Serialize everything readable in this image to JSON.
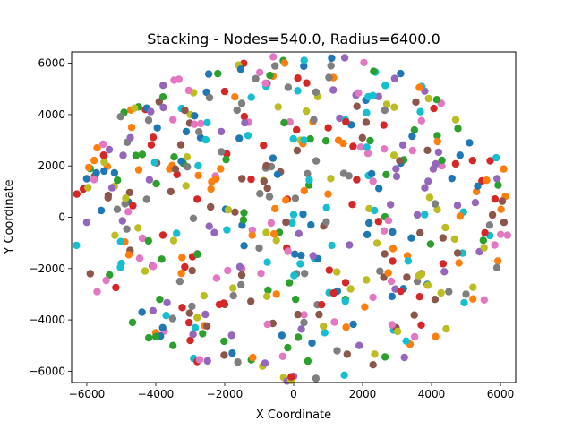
{
  "chart_data": {
    "type": "scatter",
    "title": "Stacking - Nodes=540.0, Radius=6400.0",
    "xlabel": "X Coordinate",
    "ylabel": "Y Coordinate",
    "xlim": [
      -6440,
      6440
    ],
    "ylim": [
      -6440,
      6440
    ],
    "xticks": [
      -6000,
      -4000,
      -2000,
      0,
      2000,
      4000,
      6000
    ],
    "yticks": [
      -6000,
      -4000,
      -2000,
      0,
      2000,
      4000,
      6000
    ],
    "xtick_labels": [
      "−6000",
      "−4000",
      "−2000",
      "0",
      "2000",
      "4000",
      "6000"
    ],
    "ytick_labels": [
      "−6000",
      "−4000",
      "−2000",
      "0",
      "2000",
      "4000",
      "6000"
    ],
    "grid": false,
    "legend": "none",
    "palette": [
      "#1f77b4",
      "#ff7f0e",
      "#2ca02c",
      "#d62728",
      "#9467bd",
      "#8c564b",
      "#e377c2",
      "#7f7f7f",
      "#bcbd22",
      "#17becf"
    ],
    "node_count": 540,
    "radius": 6400,
    "points_sample": [
      [
        -6000,
        1500
      ],
      [
        -5700,
        2700
      ],
      [
        -5900,
        1900
      ],
      [
        -6100,
        1100
      ],
      [
        -6000,
        -200
      ],
      [
        -5900,
        -2200
      ],
      [
        -5700,
        -2900
      ],
      [
        -5500,
        2400
      ],
      [
        -5200,
        1200
      ],
      [
        -5000,
        -1800
      ],
      [
        -4800,
        600
      ],
      [
        -4700,
        3500
      ],
      [
        -4500,
        4300
      ],
      [
        -4300,
        4200
      ],
      [
        -4100,
        -1900
      ],
      [
        -3900,
        4500
      ],
      [
        -3500,
        3800
      ],
      [
        -3300,
        -2500
      ],
      [
        -3000,
        4000
      ],
      [
        -2900,
        -5500
      ],
      [
        -2700,
        3100
      ],
      [
        -2400,
        1100
      ],
      [
        -2200,
        5600
      ],
      [
        -2000,
        4900
      ],
      [
        -1800,
        -4600
      ],
      [
        -1500,
        1500
      ],
      [
        -1300,
        3700
      ],
      [
        -1100,
        5400
      ],
      [
        -900,
        -5800
      ],
      [
        -800,
        5100
      ],
      [
        -600,
        2300
      ],
      [
        -500,
        -3000
      ],
      [
        -300,
        6100
      ],
      [
        -200,
        -1200
      ],
      [
        0,
        -6200
      ],
      [
        100,
        2600
      ],
      [
        300,
        -3800
      ],
      [
        400,
        1700
      ],
      [
        700,
        4700
      ],
      [
        900,
        -4500
      ],
      [
        1100,
        6200
      ],
      [
        1300,
        3000
      ],
      [
        1500,
        -3200
      ],
      [
        1700,
        500
      ],
      [
        1900,
        -5000
      ],
      [
        2100,
        3700
      ],
      [
        2300,
        1400
      ],
      [
        2500,
        -2100
      ],
      [
        2700,
        4400
      ],
      [
        2900,
        -4400
      ],
      [
        3100,
        5600
      ],
      [
        3300,
        -1500
      ],
      [
        3500,
        3400
      ],
      [
        3700,
        -4200
      ],
      [
        3900,
        1400
      ],
      [
        4100,
        -3200
      ],
      [
        4300,
        2000
      ],
      [
        4500,
        -2900
      ],
      [
        4700,
        3800
      ],
      [
        4900,
        -1400
      ],
      [
        5100,
        2900
      ],
      [
        5300,
        1000
      ],
      [
        5500,
        -900
      ],
      [
        5700,
        2200
      ],
      [
        5900,
        1500
      ],
      [
        6100,
        -200
      ],
      [
        6200,
        -700
      ],
      [
        5000,
        -3000
      ],
      [
        4400,
        -400
      ],
      [
        3800,
        100
      ],
      [
        -4400,
        -3700
      ],
      [
        -4000,
        -4500
      ],
      [
        -3500,
        -5000
      ],
      [
        -3000,
        -4800
      ],
      [
        -2500,
        -5600
      ],
      [
        -2000,
        -3400
      ],
      [
        -1500,
        -2000
      ],
      [
        -1000,
        -1200
      ],
      [
        -500,
        -900
      ],
      [
        0,
        100
      ],
      [
        500,
        -300
      ],
      [
        1000,
        900
      ],
      [
        -3200,
        2100
      ],
      [
        -2800,
        700
      ],
      [
        -2300,
        -600
      ],
      [
        -1700,
        200
      ],
      [
        -1200,
        -500
      ],
      [
        -700,
        800
      ],
      [
        200,
        3000
      ],
      [
        600,
        -1600
      ]
    ]
  }
}
